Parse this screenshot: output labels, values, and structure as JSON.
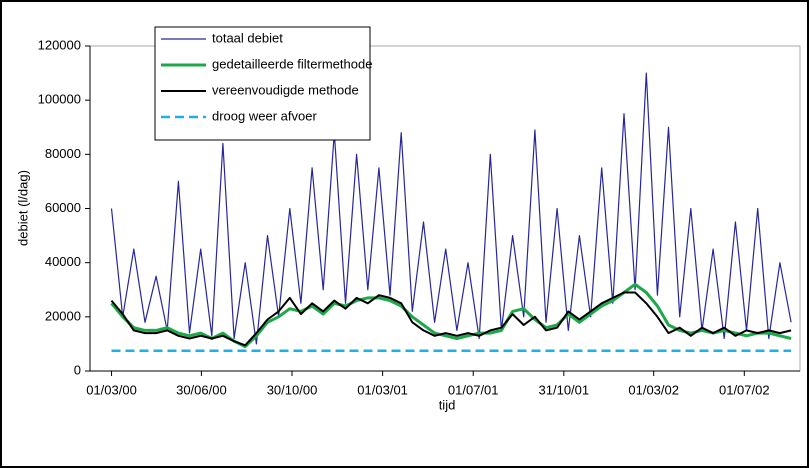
{
  "chart_data": {
    "type": "line",
    "x_label": "tijd",
    "y_label": "debiet (l/dag)",
    "x": [
      "01/03/00",
      "16/03/00",
      "31/03/00",
      "15/04/00",
      "30/04/00",
      "15/05/00",
      "30/05/00",
      "14/06/00",
      "29/06/00",
      "14/07/00",
      "29/07/00",
      "13/08/00",
      "28/08/00",
      "12/09/00",
      "27/09/00",
      "12/10/00",
      "27/10/00",
      "11/11/00",
      "26/11/00",
      "11/12/00",
      "26/12/00",
      "10/01/01",
      "25/01/01",
      "09/02/01",
      "24/02/01",
      "11/03/01",
      "26/03/01",
      "10/04/01",
      "25/04/01",
      "10/05/01",
      "25/05/01",
      "09/06/01",
      "24/06/01",
      "09/07/01",
      "24/07/01",
      "08/08/01",
      "23/08/01",
      "07/09/01",
      "22/09/01",
      "07/10/01",
      "22/10/01",
      "06/11/01",
      "21/11/01",
      "06/12/01",
      "21/12/01",
      "05/01/02",
      "20/01/02",
      "04/02/02",
      "19/02/02",
      "06/03/02",
      "21/03/02",
      "05/04/02",
      "20/04/02",
      "05/05/02",
      "20/05/02",
      "04/06/02",
      "19/06/02",
      "04/07/02",
      "19/07/02",
      "03/08/02",
      "18/08/02",
      "02/09/02"
    ],
    "series": [
      {
        "name": "totaal debiet",
        "color": "#27279a",
        "width": 1.2,
        "values": [
          60000,
          20000,
          45000,
          18000,
          35000,
          15000,
          70000,
          14000,
          45000,
          13000,
          84000,
          12000,
          40000,
          10000,
          50000,
          20000,
          60000,
          25000,
          75000,
          30000,
          88000,
          25000,
          80000,
          30000,
          75000,
          28000,
          88000,
          22000,
          55000,
          18000,
          45000,
          15000,
          40000,
          12000,
          80000,
          15000,
          50000,
          20000,
          89000,
          18000,
          60000,
          15000,
          50000,
          20000,
          75000,
          25000,
          95000,
          30000,
          110000,
          28000,
          90000,
          20000,
          60000,
          15000,
          45000,
          12000,
          55000,
          15000,
          60000,
          12000,
          40000,
          18000
        ]
      },
      {
        "name": "gedetailleerde filtermethode",
        "color": "#1fa84a",
        "width": 3,
        "values": [
          25000,
          20000,
          16000,
          15000,
          15000,
          16000,
          14000,
          13000,
          14000,
          12000,
          14000,
          11000,
          9000,
          13000,
          18000,
          20000,
          23000,
          22000,
          24000,
          21000,
          25000,
          24000,
          26000,
          27000,
          27000,
          26000,
          24000,
          20000,
          17000,
          14000,
          13000,
          12000,
          13000,
          14000,
          14000,
          15000,
          22000,
          23000,
          19000,
          16000,
          17000,
          21000,
          18000,
          21000,
          24000,
          26000,
          29000,
          32000,
          29000,
          24000,
          17000,
          15000,
          14000,
          15000,
          14000,
          15000,
          14000,
          13000,
          14000,
          14000,
          13000,
          12000
        ]
      },
      {
        "name": "vereenvoudigde methode",
        "color": "#000000",
        "width": 2,
        "values": [
          26000,
          21000,
          15000,
          14000,
          14000,
          15000,
          13000,
          12000,
          13000,
          12000,
          13000,
          11000,
          9500,
          14000,
          19000,
          22000,
          27000,
          21000,
          25000,
          22000,
          26000,
          23000,
          27000,
          25000,
          28000,
          27000,
          25000,
          18000,
          15000,
          13000,
          14000,
          13000,
          14000,
          13000,
          15000,
          16000,
          21000,
          17000,
          20000,
          15000,
          16000,
          22000,
          19000,
          22000,
          25000,
          27000,
          29000,
          29000,
          25000,
          20000,
          14000,
          16000,
          13000,
          16000,
          14000,
          16000,
          13000,
          15000,
          14000,
          15000,
          14000,
          15000
        ]
      },
      {
        "name": "droog weer afvoer",
        "color": "#1ab0e8",
        "width": 2.5,
        "dash": true,
        "values": [
          7500,
          7500,
          7500,
          7500,
          7500,
          7500,
          7500,
          7500,
          7500,
          7500,
          7500,
          7500,
          7500,
          7500,
          7500,
          7500,
          7500,
          7500,
          7500,
          7500,
          7500,
          7500,
          7500,
          7500,
          7500,
          7500,
          7500,
          7500,
          7500,
          7500,
          7500,
          7500,
          7500,
          7500,
          7500,
          7500,
          7500,
          7500,
          7500,
          7500,
          7500,
          7500,
          7500,
          7500,
          7500,
          7500,
          7500,
          7500,
          7500,
          7500,
          7500,
          7500,
          7500,
          7500,
          7500,
          7500,
          7500,
          7500,
          7500,
          7500,
          7500,
          7500
        ]
      }
    ],
    "xlim": [
      "01/02/00",
      "14/09/02"
    ],
    "xticks": [
      "01/03/00",
      "30/06/00",
      "30/10/00",
      "01/03/01",
      "01/07/01",
      "31/10/01",
      "01/03/02",
      "01/07/02"
    ],
    "ylim": [
      0,
      120000
    ],
    "yticks": [
      0,
      20000,
      40000,
      60000,
      80000,
      100000,
      120000
    ],
    "grid": false
  }
}
